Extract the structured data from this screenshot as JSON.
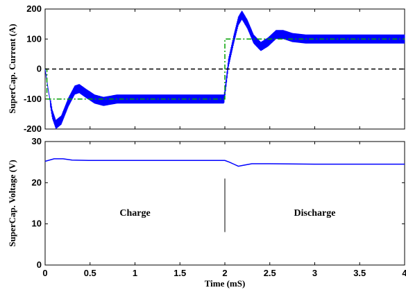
{
  "chart_data": [
    {
      "type": "line",
      "ylabel": "SuperCap. Current (A)",
      "xlim": [
        0,
        4
      ],
      "ylim": [
        -200,
        200
      ],
      "yticks": [
        "-200",
        "-100",
        "0",
        "100",
        "200"
      ],
      "grid": false,
      "series": [
        {
          "color": "#0000ff",
          "style": "solid",
          "x": [
            0,
            0.03,
            0.08,
            0.12,
            0.18,
            0.26,
            0.33,
            0.38,
            0.45,
            0.55,
            0.65,
            0.8,
            1.0,
            1.5,
            1.99,
            2.0,
            2.04,
            2.1,
            2.15,
            2.19,
            2.25,
            2.32,
            2.4,
            2.48,
            2.57,
            2.65,
            2.75,
            2.9,
            3.2,
            3.6,
            4.0
          ],
          "y": [
            0,
            -60,
            -150,
            -185,
            -170,
            -110,
            -70,
            -65,
            -80,
            -100,
            -108,
            -100,
            -100,
            -100,
            -100,
            -80,
            20,
            100,
            160,
            180,
            150,
            100,
            75,
            90,
            115,
            115,
            105,
            100,
            100,
            100,
            100
          ],
          "ripple": 15
        },
        {
          "color": "#00a000",
          "style": "dashdot",
          "x": [
            0,
            0.02,
            0.02,
            2.0,
            2.0,
            4.0
          ],
          "y": [
            0,
            0,
            -100,
            -100,
            100,
            100
          ]
        },
        {
          "color": "#000000",
          "style": "dashed",
          "x": [
            0,
            4
          ],
          "y": [
            0,
            0
          ]
        }
      ]
    },
    {
      "type": "line",
      "xlabel": "Time (mS)",
      "ylabel": "SuperCap. Voltage (V)",
      "xlim": [
        0,
        4
      ],
      "ylim": [
        0,
        30
      ],
      "xticks": [
        "0",
        "0.5",
        "1",
        "1.5",
        "2",
        "2.5",
        "3",
        "3.5",
        "4"
      ],
      "yticks": [
        "0",
        "10",
        "20",
        "30"
      ],
      "grid": false,
      "annotations": [
        {
          "text": "Charge",
          "x": 1.0,
          "y": 12
        },
        {
          "text": "Discharge",
          "x": 3.0,
          "y": 12
        }
      ],
      "divider": {
        "x": 2.0,
        "y": [
          8,
          21
        ]
      },
      "series": [
        {
          "color": "#0000ff",
          "style": "solid",
          "x": [
            0,
            0.1,
            0.2,
            0.3,
            0.5,
            1.0,
            1.5,
            2.0,
            2.05,
            2.1,
            2.15,
            2.2,
            2.3,
            2.5,
            3.0,
            3.5,
            4.0
          ],
          "y": [
            25.2,
            25.8,
            25.8,
            25.5,
            25.4,
            25.4,
            25.4,
            25.4,
            25.0,
            24.5,
            24.0,
            24.2,
            24.6,
            24.6,
            24.5,
            24.5,
            24.5
          ]
        }
      ]
    }
  ]
}
